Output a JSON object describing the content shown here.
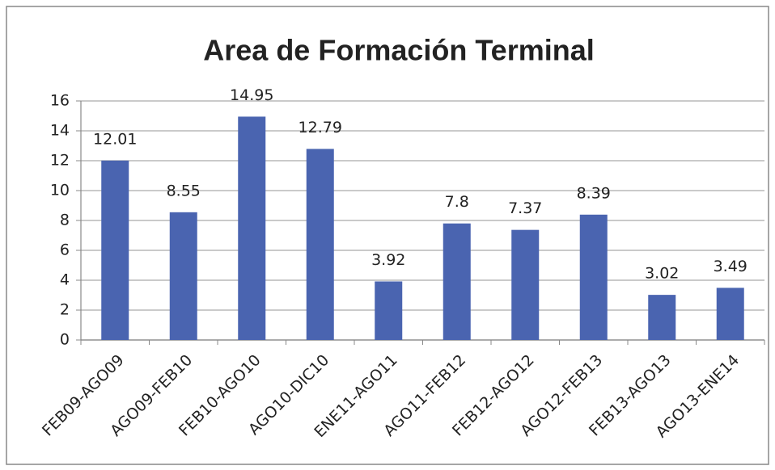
{
  "chart_data": {
    "type": "bar",
    "title": "Area de Formación Terminal",
    "categories": [
      "FEB09-AGO09",
      "AGO09-FEB10",
      "FEB10-AGO10",
      "AGO10-DIC10",
      "ENE11-AGO11",
      "AGO11-FEB12",
      "FEB12-AGO12",
      "AGO12-FEB13",
      "FEB13-AGO13",
      "AGO13-ENE14"
    ],
    "values": [
      12.01,
      8.55,
      14.95,
      12.79,
      3.92,
      7.8,
      7.37,
      8.39,
      3.02,
      3.49
    ],
    "color": "#4a64b0",
    "ylim": [
      0,
      16
    ],
    "yticks": [
      0,
      2,
      4,
      6,
      8,
      10,
      12,
      14,
      16
    ],
    "grid": true
  }
}
